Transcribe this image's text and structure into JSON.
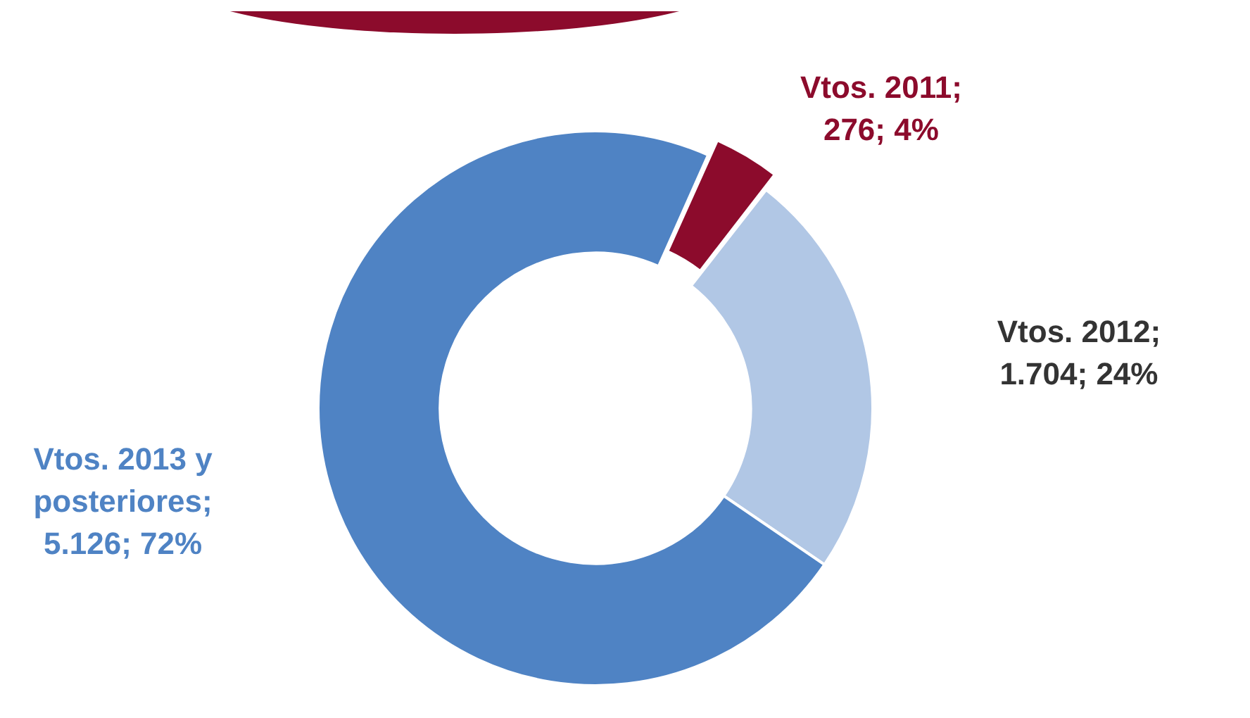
{
  "chart_data": {
    "type": "donut",
    "categories": [
      "Vtos. 2011",
      "Vtos. 2012",
      "Vtos. 2013 y posteriores"
    ],
    "values": [
      276,
      1704,
      5126
    ],
    "colors": [
      "#8c0b2c",
      "#b1c7e5",
      "#4f83c4"
    ],
    "value_labels": [
      "; 276; 4%",
      "; 1.704; 24%",
      "; 5.126; 72%"
    ],
    "legend": false
  }
}
